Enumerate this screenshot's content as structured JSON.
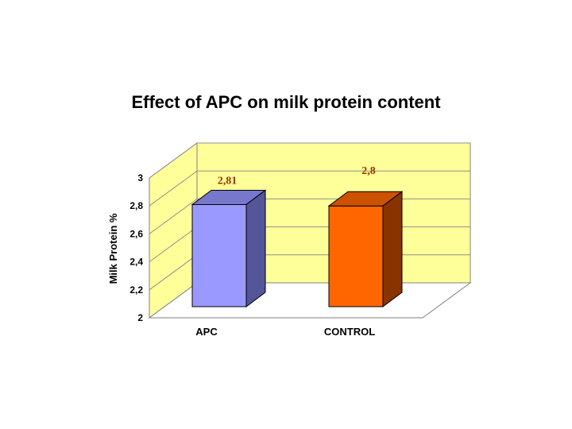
{
  "chart_data": {
    "type": "bar",
    "title": "Effect of APC on milk protein content",
    "ylabel": "Milk Protein %",
    "xlabel": "",
    "categories": [
      "APC",
      "CONTROL"
    ],
    "values": [
      2.81,
      2.8
    ],
    "value_labels": [
      "2,81",
      "2,8"
    ],
    "yticks": [
      "2",
      "2,2",
      "2,4",
      "2,6",
      "2,8",
      "3"
    ],
    "ylim": [
      2,
      3
    ],
    "grid": true,
    "legend": "none",
    "style": "3d",
    "colors": {
      "wall": "#ffff99",
      "data_label": "#993300",
      "bars": [
        {
          "front": "#9999ff",
          "top": "#7777cc",
          "side": "#555599"
        },
        {
          "front": "#ff6600",
          "top": "#cc5200",
          "side": "#883300"
        }
      ]
    }
  }
}
